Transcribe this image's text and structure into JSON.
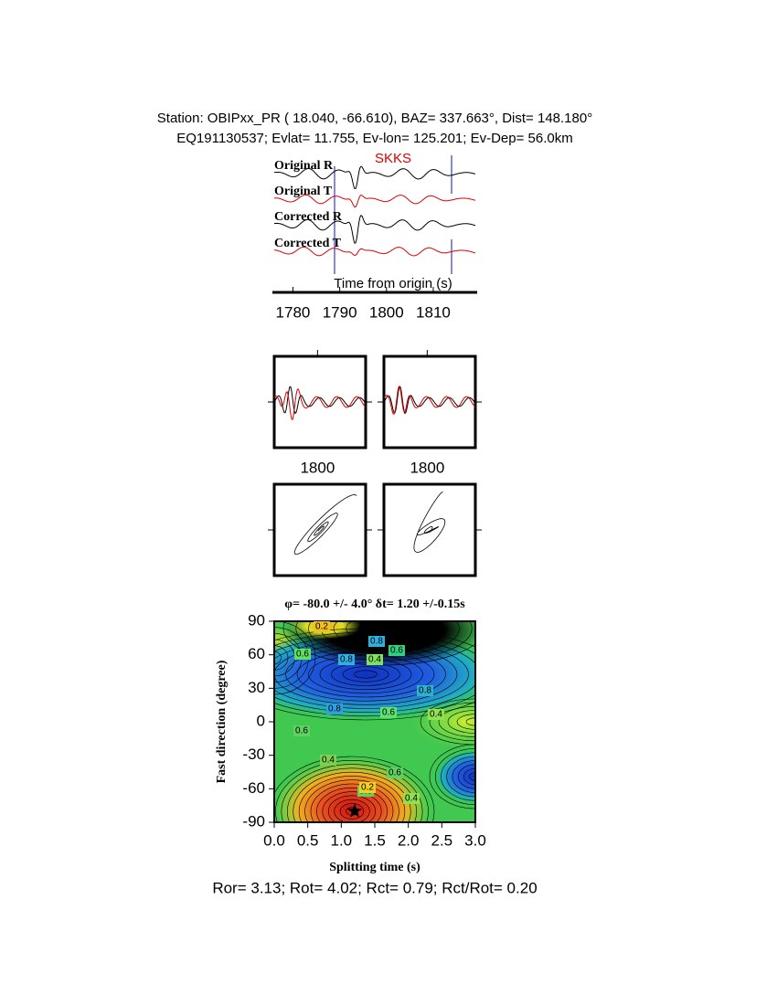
{
  "header": {
    "line1": "Station: OBIPxx_PR (  18.040,  -66.610), BAZ=  337.663°, Dist=  148.180°",
    "line2": "EQ191130537; Evlat=  11.755, Ev-lon= 125.201; Ev-Dep= 56.0km"
  },
  "traces": {
    "phase": "SKKS",
    "labels": [
      "Original R",
      "Original T",
      "Corrected R",
      "Corrected T"
    ],
    "xlabel": "Time from origin (s)",
    "xlim": [
      1776,
      1819
    ],
    "xticks": [
      1780,
      1790,
      1800,
      1810
    ]
  },
  "panels": [
    {
      "xlim": [
        1791,
        1810
      ],
      "xticks": [
        1800
      ]
    },
    {
      "xlim": [
        1791,
        1810
      ],
      "xticks": [
        1800
      ]
    }
  ],
  "grid_search": {
    "title": "φ= -80.0 +/- 4.0° δt= 1.20 +/-0.15s",
    "xlabel": "Splitting time (s)",
    "ylabel": "Fast direction (degree)",
    "xlim": [
      0,
      3
    ],
    "ylim": [
      -90,
      90
    ],
    "xticks": [
      {
        "value": 0,
        "label": "0.0"
      },
      0.5,
      {
        "value": 1,
        "label": "1.0"
      },
      1.5,
      {
        "value": 2,
        "label": "2.0"
      },
      2.5,
      {
        "value": 3,
        "label": "3.0"
      }
    ],
    "yticks": [
      -90,
      -60,
      -30,
      0,
      30,
      60,
      90
    ],
    "best": {
      "x": 1.2,
      "y": -80
    },
    "contour_labels": [
      0.2,
      0.6,
      0.8,
      0.8,
      0.4,
      0.6,
      0.8,
      0.6,
      0.8,
      0.6,
      0.4,
      0.6,
      0.4,
      0.6,
      0.2,
      0.4
    ]
  },
  "footer": "Ror= 3.13; Rot= 4.02; Rct= 0.79; Rct/Rot= 0.20"
}
